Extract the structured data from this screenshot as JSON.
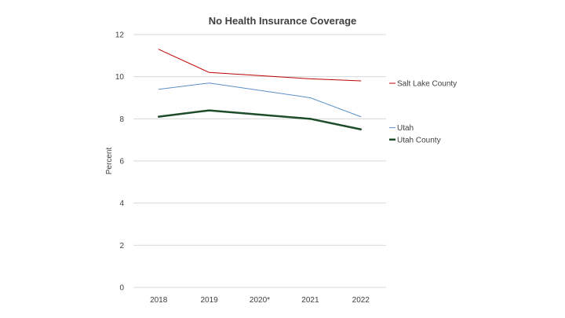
{
  "chart_data": {
    "type": "line",
    "title": "No Health Insurance Coverage",
    "xlabel": "",
    "ylabel": "Percent",
    "categories": [
      "2018",
      "2019",
      "2020*",
      "2021",
      "2022"
    ],
    "ylim": [
      0,
      12
    ],
    "yticks": [
      0,
      2,
      4,
      6,
      8,
      10,
      12
    ],
    "grid": "horizontal",
    "legend_position": "right",
    "series": [
      {
        "name": "Salt Lake County",
        "color": "#c00000",
        "line_weight": "thin",
        "values": [
          11.3,
          10.2,
          null,
          9.9,
          9.8
        ]
      },
      {
        "name": "Utah",
        "color": "#5b8fc9",
        "line_weight": "thin",
        "values": [
          9.4,
          9.7,
          null,
          9.0,
          8.1
        ]
      },
      {
        "name": "Utah County",
        "color": "#1e4d2b",
        "line_weight": "thick",
        "values": [
          8.1,
          8.4,
          null,
          8.0,
          7.5
        ]
      }
    ]
  }
}
